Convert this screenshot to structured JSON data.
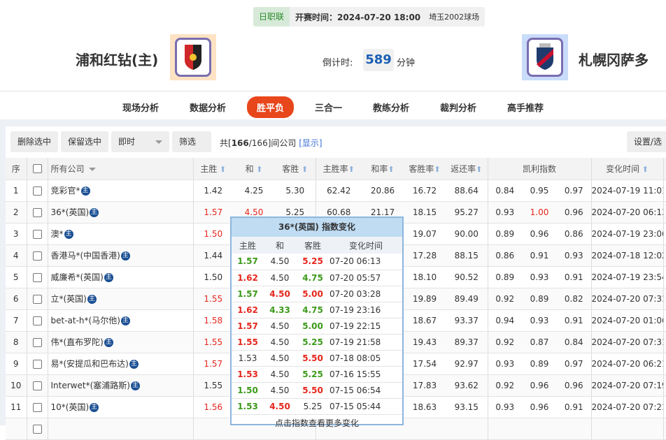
{
  "match": {
    "league": "日职联",
    "kickoff": "开赛时间：2024-07-20 18:00",
    "venue": "埼玉2002球场",
    "home": "浦和红钻(主)",
    "away": "札幌冈萨多",
    "countdown_label": "倒计时:",
    "countdown_value": "589",
    "countdown_unit": "分钟"
  },
  "nav": [
    "现场分析",
    "数据分析",
    "胜平负",
    "三合一",
    "教练分析",
    "裁判分析",
    "高手推荐"
  ],
  "nav_active": 2,
  "toolbar": {
    "delete": "删除选中",
    "keep": "保留选中",
    "mode": "即时",
    "filter": "筛选",
    "count_prefix": "共[",
    "count_bold": "166",
    "count_rest": "/166]间公司",
    "show": "[显示]",
    "settings": "设置/选择"
  },
  "headers": {
    "idx": "序",
    "company": "所有公司",
    "home": "主胜",
    "draw": "和",
    "away": "客胜",
    "home_rate": "主胜率",
    "draw_rate": "和率",
    "away_rate": "客胜率",
    "return_rate": "返还率",
    "kelly": "凯利指数",
    "time": "变化时间"
  },
  "rows": [
    {
      "i": "1",
      "c": "竞彩官*",
      "h": "1.42",
      "hc": "",
      "d": "4.25",
      "dc": "",
      "a": "5.30",
      "hr": "62.42",
      "dr": "20.86",
      "ar": "16.72",
      "rr": "88.64",
      "k": [
        "0.84",
        "0.95",
        "0.97"
      ],
      "t": "2024-07-19 11:01"
    },
    {
      "i": "2",
      "c": "36*(英国)",
      "h": "1.57",
      "hc": "r",
      "d": "4.50",
      "dc": "r",
      "a": "5.25",
      "hr": "60.68",
      "dr": "21.17",
      "ar": "18.15",
      "rr": "95.27",
      "k": [
        "0.93",
        "1.00",
        "0.96"
      ],
      "kr": 1,
      "t": "2024-07-20 06:13"
    },
    {
      "i": "3",
      "c": "澳*",
      "h": "1.50",
      "hc": "r",
      "ar": "19.07",
      "rr": "90.00",
      "k": [
        "0.89",
        "0.96",
        "0.86"
      ],
      "t": "2024-07-19 23:06"
    },
    {
      "i": "4",
      "c": "香港马*(中国香港)",
      "h": "1.44",
      "hc": "",
      "ar": "17.28",
      "rr": "88.15",
      "k": [
        "0.86",
        "0.91",
        "0.93"
      ],
      "t": "2024-07-18 12:02"
    },
    {
      "i": "5",
      "c": "威廉希*(英国)",
      "h": "1.50",
      "hc": "",
      "ar": "18.10",
      "rr": "90.52",
      "k": [
        "0.89",
        "0.93",
        "0.91"
      ],
      "t": "2024-07-19 23:54"
    },
    {
      "i": "6",
      "c": "立*(英国)",
      "h": "1.55",
      "hc": "r",
      "ar": "19.89",
      "rr": "89.49",
      "k": [
        "0.92",
        "0.89",
        "0.82"
      ],
      "t": "2024-07-20 07:31"
    },
    {
      "i": "7",
      "c": "bet-at-h*(马尔他)",
      "h": "1.58",
      "hc": "r",
      "ar": "18.67",
      "rr": "93.37",
      "k": [
        "0.94",
        "0.93",
        "0.91"
      ],
      "t": "2024-07-20 01:06"
    },
    {
      "i": "8",
      "c": "伟*(直布罗陀)",
      "h": "1.55",
      "hc": "r",
      "ar": "19.43",
      "rr": "89.37",
      "k": [
        "0.92",
        "0.87",
        "0.84"
      ],
      "t": "2024-07-20 07:31"
    },
    {
      "i": "9",
      "c": "易*(安提瓜和巴布达)",
      "h": "1.57",
      "hc": "r",
      "ar": "17.54",
      "rr": "92.97",
      "k": [
        "0.93",
        "0.89",
        "0.97"
      ],
      "t": "2024-07-20 06:21"
    },
    {
      "i": "10",
      "c": "Interwet*(塞浦路斯)",
      "h": "1.55",
      "hc": "",
      "ar": "17.83",
      "rr": "93.62",
      "k": [
        "0.92",
        "0.96",
        "0.96"
      ],
      "t": "2024-07-20 07:19"
    },
    {
      "i": "11",
      "c": "10*(英国)",
      "h": "1.56",
      "hc": "r",
      "ar": "18.63",
      "rr": "93.15",
      "k": [
        "0.93",
        "0.96",
        "0.91"
      ],
      "t": "2024-07-20 07:21"
    }
  ],
  "badge": "主",
  "popup": {
    "title": "36*(英国) 指数变化",
    "headers": [
      "主胜",
      "和",
      "客胜",
      "变化时间"
    ],
    "more": "点击指数查看更多变化",
    "rows": [
      [
        "1.57",
        "g",
        "4.50",
        "",
        "5.25",
        "r",
        "07-20 06:13"
      ],
      [
        "1.62",
        "r",
        "4.50",
        "",
        "4.75",
        "g",
        "07-20 05:57"
      ],
      [
        "1.57",
        "g",
        "4.50",
        "r",
        "5.00",
        "r",
        "07-20 03:28"
      ],
      [
        "1.62",
        "r",
        "4.33",
        "g",
        "4.75",
        "g",
        "07-19 23:16"
      ],
      [
        "1.57",
        "r",
        "4.50",
        "",
        "5.00",
        "g",
        "07-19 22:15"
      ],
      [
        "1.55",
        "r",
        "4.50",
        "",
        "5.25",
        "g",
        "07-19 21:58"
      ],
      [
        "1.53",
        "",
        "4.50",
        "",
        "5.50",
        "r",
        "07-18 08:05"
      ],
      [
        "1.53",
        "r",
        "4.50",
        "",
        "5.25",
        "g",
        "07-16 15:55"
      ],
      [
        "1.50",
        "g",
        "4.50",
        "",
        "5.50",
        "r",
        "07-15 06:54"
      ],
      [
        "1.53",
        "g",
        "4.50",
        "r",
        "5.25",
        "",
        "07-15 05:44"
      ]
    ]
  },
  "colors": {
    "accent": "#e8461b",
    "up": "#e5261c",
    "down": "#3c9a1a",
    "link": "#3b6fd4",
    "countdown": "#1a5fb4"
  }
}
